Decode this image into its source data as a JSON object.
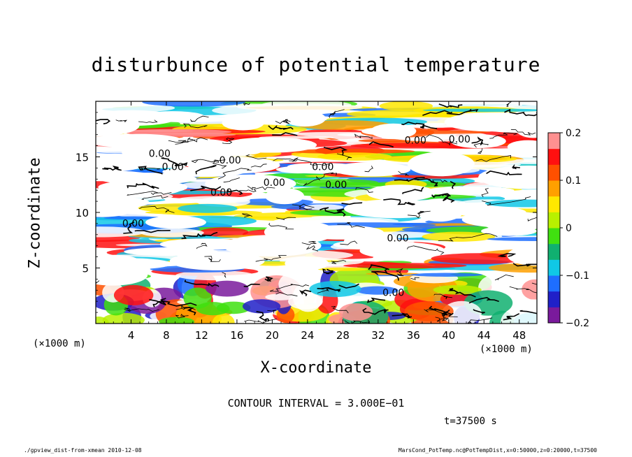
{
  "chart_data": {
    "type": "heatmap",
    "title": "disturbunce of potential temperature",
    "xlabel": "X-coordinate",
    "ylabel": "Z-coordinate",
    "x_unit": "(×1000 m)",
    "y_unit": "(×1000 m)",
    "xlim": [
      0,
      50
    ],
    "ylim": [
      0,
      20
    ],
    "x_ticks": [
      4,
      8,
      12,
      16,
      20,
      24,
      28,
      32,
      36,
      40,
      44,
      48
    ],
    "y_ticks": [
      5,
      10,
      15
    ],
    "colorbar": {
      "min": -0.2,
      "max": 0.2,
      "ticks": [
        "0.2",
        "0.1",
        "0",
        "−0.1",
        "−0.2"
      ],
      "colors": [
        "#7a1a9c",
        "#2020c8",
        "#1e6eff",
        "#10c8e6",
        "#10b070",
        "#40e010",
        "#b8f000",
        "#ffe800",
        "#ffa000",
        "#ff5000",
        "#ff1010",
        "#ff9090"
      ]
    },
    "contour_labels": [
      "0.00",
      "0.00",
      "0.00",
      "0.00",
      "0.00",
      "0.00",
      "0.00",
      "0.00",
      "0.00",
      "0.00",
      "0.00",
      "0.00"
    ],
    "contour_interval": "CONTOUR INTERVAL = 3.000E−01",
    "time": "t=37500 s"
  },
  "footer": {
    "left": "./gpview_dist-from-xmean  2010-12-08",
    "right": "MarsCond_PotTemp.nc@PotTempDist,x=0:50000,z=0:20000,t=37500"
  }
}
